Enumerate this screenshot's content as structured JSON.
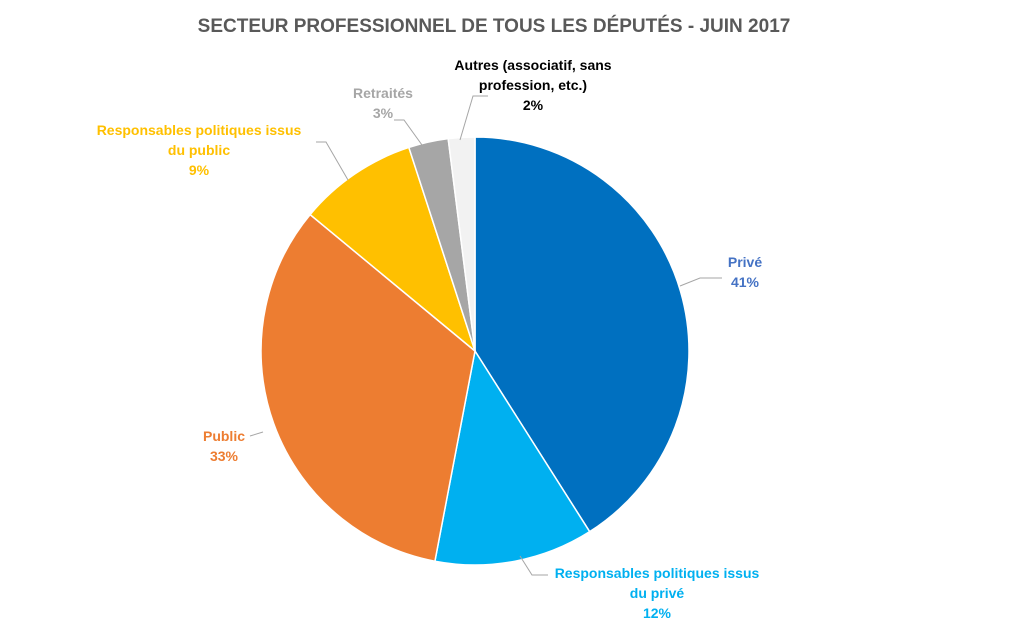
{
  "chart_data": {
    "type": "pie",
    "title": "SECTEUR PROFESSIONNEL DE TOUS LES DÉPUTÉS - JUIN 2017",
    "unit": "%",
    "start": "12 o'clock",
    "direction": "clockwise",
    "slices": [
      {
        "id": "prive",
        "label_lines": [
          "Privé"
        ],
        "value": 41,
        "value_label": "41%",
        "color": "#0070c0"
      },
      {
        "id": "resp-prive",
        "label_lines": [
          "Responsables politiques issus",
          "du privé"
        ],
        "value": 12,
        "value_label": "12%",
        "color": "#00b0f0"
      },
      {
        "id": "public",
        "label_lines": [
          "Public"
        ],
        "value": 33,
        "value_label": "33%",
        "color": "#ed7d31"
      },
      {
        "id": "resp-public",
        "label_lines": [
          "Responsables politiques issus",
          "du public"
        ],
        "value": 9,
        "value_label": "9%",
        "color": "#ffc000"
      },
      {
        "id": "retraites",
        "label_lines": [
          "Retraités"
        ],
        "value": 3,
        "value_label": "3%",
        "color": "#a6a6a6"
      },
      {
        "id": "autres",
        "label_lines": [
          "Autres (associatif, sans",
          "profession, etc.)"
        ],
        "value": 2,
        "value_label": "2%",
        "color": "#f2f2f2"
      }
    ],
    "label_colors": {
      "prive": "#4472c4",
      "resp-prive": "#00b0f0",
      "public": "#ed7d31",
      "resp-public": "#ffc000",
      "retraites": "#a6a6a6",
      "autres": "#000000"
    }
  }
}
